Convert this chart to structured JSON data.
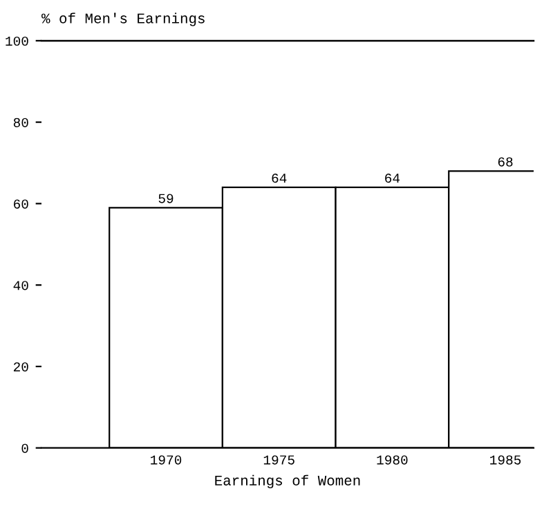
{
  "chart_data": {
    "type": "bar",
    "title": "% of Men's Earnings",
    "xlabel": "Earnings of Women",
    "categories": [
      "1970",
      "1975",
      "1980",
      "1985"
    ],
    "values": [
      59,
      64,
      64,
      68
    ],
    "color": "#ffffff",
    "ylim": [
      0,
      100
    ],
    "yticks": [
      0,
      20,
      40,
      60,
      80,
      100
    ],
    "ref_lines": [
      {
        "axis": "y",
        "value": 100,
        "color": "#000000"
      }
    ],
    "data_labels": true,
    "grid": false,
    "legend": false
  }
}
